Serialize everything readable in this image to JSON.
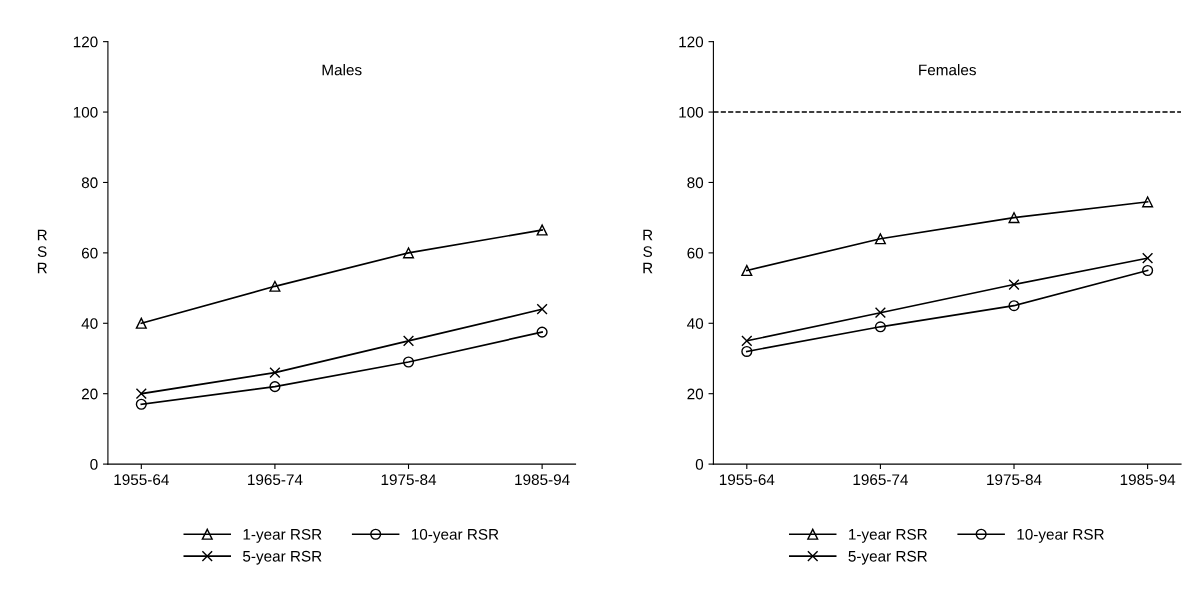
{
  "chart_data": [
    {
      "type": "line",
      "title": "Males",
      "ylabel": "R\nS\nR",
      "categories": [
        "1955-64",
        "1965-74",
        "1975-84",
        "1985-94"
      ],
      "ylim": [
        0,
        120
      ],
      "yticks": [
        0,
        20,
        40,
        60,
        80,
        100,
        120
      ],
      "legend": "bottom",
      "grid": false,
      "line_style": "solid",
      "series": [
        {
          "name": "1-year RSR",
          "color": "#000000",
          "marker": "triangle",
          "values": [
            40,
            50.5,
            60,
            66.5
          ]
        },
        {
          "name": "5-year RSR",
          "color": "#000000",
          "marker": "cross",
          "values": [
            20,
            26,
            35,
            44
          ]
        },
        {
          "name": "10-year RSR",
          "color": "#000000",
          "marker": "circle",
          "values": [
            17,
            22,
            29,
            37.5
          ]
        }
      ]
    },
    {
      "type": "line",
      "title": "Females",
      "ylabel": "R\nS\nR",
      "categories": [
        "1955-64",
        "1965-74",
        "1975-84",
        "1985-94"
      ],
      "ylim": [
        0,
        120
      ],
      "yticks": [
        0,
        20,
        40,
        60,
        80,
        100,
        120
      ],
      "legend": "bottom",
      "grid": false,
      "line_style": "solid",
      "ref_lines": [
        {
          "axis": "y",
          "value": 100,
          "color": "#000000",
          "line_style": "dashed"
        }
      ],
      "series": [
        {
          "name": "1-year RSR",
          "color": "#000000",
          "marker": "triangle",
          "values": [
            55,
            64,
            70,
            74.5
          ]
        },
        {
          "name": "5-year RSR",
          "color": "#000000",
          "marker": "cross",
          "values": [
            35,
            43,
            51,
            58.5
          ]
        },
        {
          "name": "10-year RSR",
          "color": "#000000",
          "marker": "circle",
          "values": [
            32,
            39,
            45,
            55
          ]
        }
      ]
    }
  ]
}
